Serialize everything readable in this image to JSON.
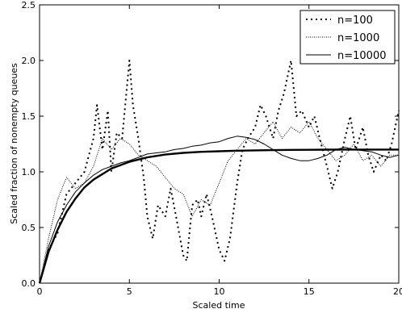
{
  "chart_data": {
    "type": "line",
    "xlabel": "Scaled time",
    "ylabel": "Scaled fraction of nonempty queues",
    "xlim": [
      0,
      20
    ],
    "ylim": [
      0,
      2.5
    ],
    "xticks": [
      0,
      5,
      10,
      15,
      20
    ],
    "xtick_labels": [
      "0",
      "5",
      "10",
      "15",
      "20"
    ],
    "yticks": [
      0,
      0.5,
      1.0,
      1.5,
      2.0,
      2.5
    ],
    "ytick_labels": [
      "0.0",
      "0.5",
      "1.0",
      "1.5",
      "2.0",
      "2.5"
    ],
    "grid": false,
    "legend_position": "top-right",
    "series": [
      {
        "name": "n=100",
        "style": "dotted-coarse",
        "x": [
          0,
          0.5,
          1.0,
          1.5,
          2.0,
          2.5,
          3.0,
          3.2,
          3.5,
          3.8,
          4.0,
          4.3,
          4.6,
          5.0,
          5.2,
          5.5,
          5.8,
          6.0,
          6.3,
          6.6,
          7.0,
          7.3,
          7.6,
          8.0,
          8.2,
          8.5,
          8.8,
          9.0,
          9.3,
          9.6,
          10.0,
          10.3,
          10.6,
          11.0,
          11.3,
          11.6,
          12.0,
          12.3,
          12.6,
          13.0,
          13.3,
          13.6,
          14.0,
          14.3,
          14.6,
          15.0,
          15.3,
          15.6,
          16.0,
          16.3,
          16.6,
          17.0,
          17.3,
          17.6,
          18.0,
          18.3,
          18.6,
          19.0,
          19.3,
          19.6,
          20.0
        ],
        "values": [
          0,
          0.3,
          0.45,
          0.8,
          0.9,
          1.0,
          1.3,
          1.6,
          1.2,
          1.55,
          1.0,
          1.35,
          1.3,
          2.0,
          1.6,
          1.3,
          0.95,
          0.6,
          0.4,
          0.7,
          0.6,
          0.85,
          0.6,
          0.25,
          0.2,
          0.7,
          0.75,
          0.6,
          0.8,
          0.6,
          0.3,
          0.2,
          0.4,
          0.9,
          1.2,
          1.3,
          1.4,
          1.6,
          1.5,
          1.3,
          1.55,
          1.7,
          2.0,
          1.5,
          1.55,
          1.4,
          1.5,
          1.3,
          1.05,
          0.85,
          1.0,
          1.3,
          1.5,
          1.2,
          1.4,
          1.15,
          1.0,
          1.15,
          1.1,
          1.25,
          1.55
        ]
      },
      {
        "name": "n=1000",
        "style": "dotted-fine",
        "x": [
          0,
          0.5,
          1.0,
          1.5,
          2.0,
          2.5,
          3.0,
          3.5,
          4.0,
          4.5,
          5.0,
          5.5,
          6.0,
          6.5,
          7.0,
          7.5,
          8.0,
          8.5,
          9.0,
          9.5,
          10.0,
          10.5,
          11.0,
          11.5,
          12.0,
          12.5,
          13.0,
          13.5,
          14.0,
          14.5,
          15.0,
          15.5,
          16.0,
          16.5,
          17.0,
          17.5,
          18.0,
          18.5,
          19.0,
          19.5,
          20.0
        ],
        "values": [
          0,
          0.4,
          0.75,
          0.95,
          0.85,
          0.9,
          1.05,
          1.3,
          1.2,
          1.3,
          1.25,
          1.15,
          1.1,
          1.05,
          0.95,
          0.85,
          0.8,
          0.6,
          0.75,
          0.7,
          0.9,
          1.1,
          1.2,
          1.3,
          1.25,
          1.35,
          1.45,
          1.3,
          1.4,
          1.35,
          1.45,
          1.3,
          1.2,
          1.1,
          1.15,
          1.25,
          1.1,
          1.15,
          1.05,
          1.15,
          1.15
        ]
      },
      {
        "name": "n=10000",
        "style": "solid-thin",
        "x": [
          0,
          0.5,
          1.0,
          1.5,
          2.0,
          2.5,
          3.0,
          3.5,
          4.0,
          4.5,
          5.0,
          5.5,
          6.0,
          6.5,
          7.0,
          7.5,
          8.0,
          8.5,
          9.0,
          9.5,
          10.0,
          10.5,
          11.0,
          11.5,
          12.0,
          12.5,
          13.0,
          13.5,
          14.0,
          14.5,
          15.0,
          15.5,
          16.0,
          16.5,
          17.0,
          17.5,
          18.0,
          18.5,
          19.0,
          19.5,
          20.0
        ],
        "values": [
          0,
          0.33,
          0.55,
          0.7,
          0.82,
          0.9,
          0.97,
          1.02,
          1.05,
          1.08,
          1.1,
          1.13,
          1.16,
          1.17,
          1.18,
          1.2,
          1.21,
          1.23,
          1.24,
          1.26,
          1.27,
          1.3,
          1.32,
          1.31,
          1.29,
          1.25,
          1.2,
          1.15,
          1.12,
          1.1,
          1.1,
          1.12,
          1.15,
          1.2,
          1.22,
          1.2,
          1.19,
          1.18,
          1.15,
          1.13,
          1.15
        ]
      },
      {
        "style": "solid-thick",
        "x": [
          0,
          0.5,
          1.0,
          1.5,
          2.0,
          2.5,
          3.0,
          3.5,
          4.0,
          4.5,
          5.0,
          6.0,
          7.0,
          8.0,
          9.0,
          10.0,
          11.0,
          12.0,
          13.0,
          14.0,
          15.0,
          16.0,
          17.0,
          18.0,
          19.0,
          20.0
        ],
        "values": [
          0,
          0.28,
          0.48,
          0.64,
          0.76,
          0.86,
          0.93,
          0.98,
          1.03,
          1.06,
          1.09,
          1.13,
          1.155,
          1.17,
          1.18,
          1.185,
          1.19,
          1.193,
          1.195,
          1.197,
          1.198,
          1.199,
          1.2,
          1.2,
          1.2,
          1.2
        ]
      }
    ]
  }
}
